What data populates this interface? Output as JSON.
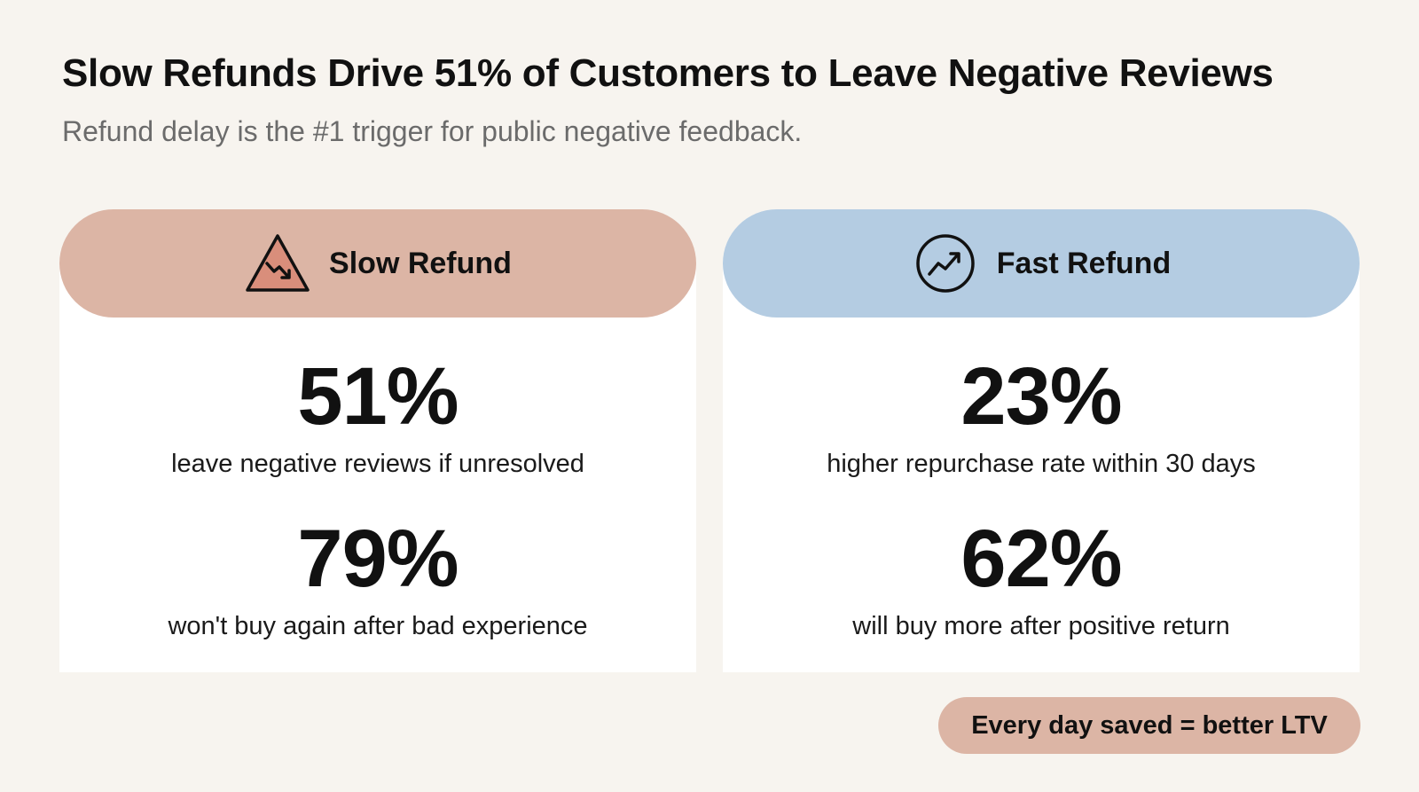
{
  "header": {
    "title": "Slow Refunds Drive 51% of Customers to Leave Negative Reviews",
    "subtitle": "Refund delay is the #1 trigger for public negative feedback."
  },
  "cards": [
    {
      "label": "Slow Refund",
      "icon": "warning-downtrend-icon",
      "color": "#dcb5a5",
      "stats": [
        {
          "value": "51%",
          "label": "leave negative reviews if unresolved"
        },
        {
          "value": "79%",
          "label": "won't buy again after bad experience"
        }
      ]
    },
    {
      "label": "Fast Refund",
      "icon": "uptrend-circle-icon",
      "color": "#b4cce2",
      "stats": [
        {
          "value": "23%",
          "label": "higher repurchase rate within 30 days"
        },
        {
          "value": "62%",
          "label": "will buy more after positive return"
        }
      ]
    }
  ],
  "footer": {
    "badge": "Every day saved = better LTV"
  }
}
